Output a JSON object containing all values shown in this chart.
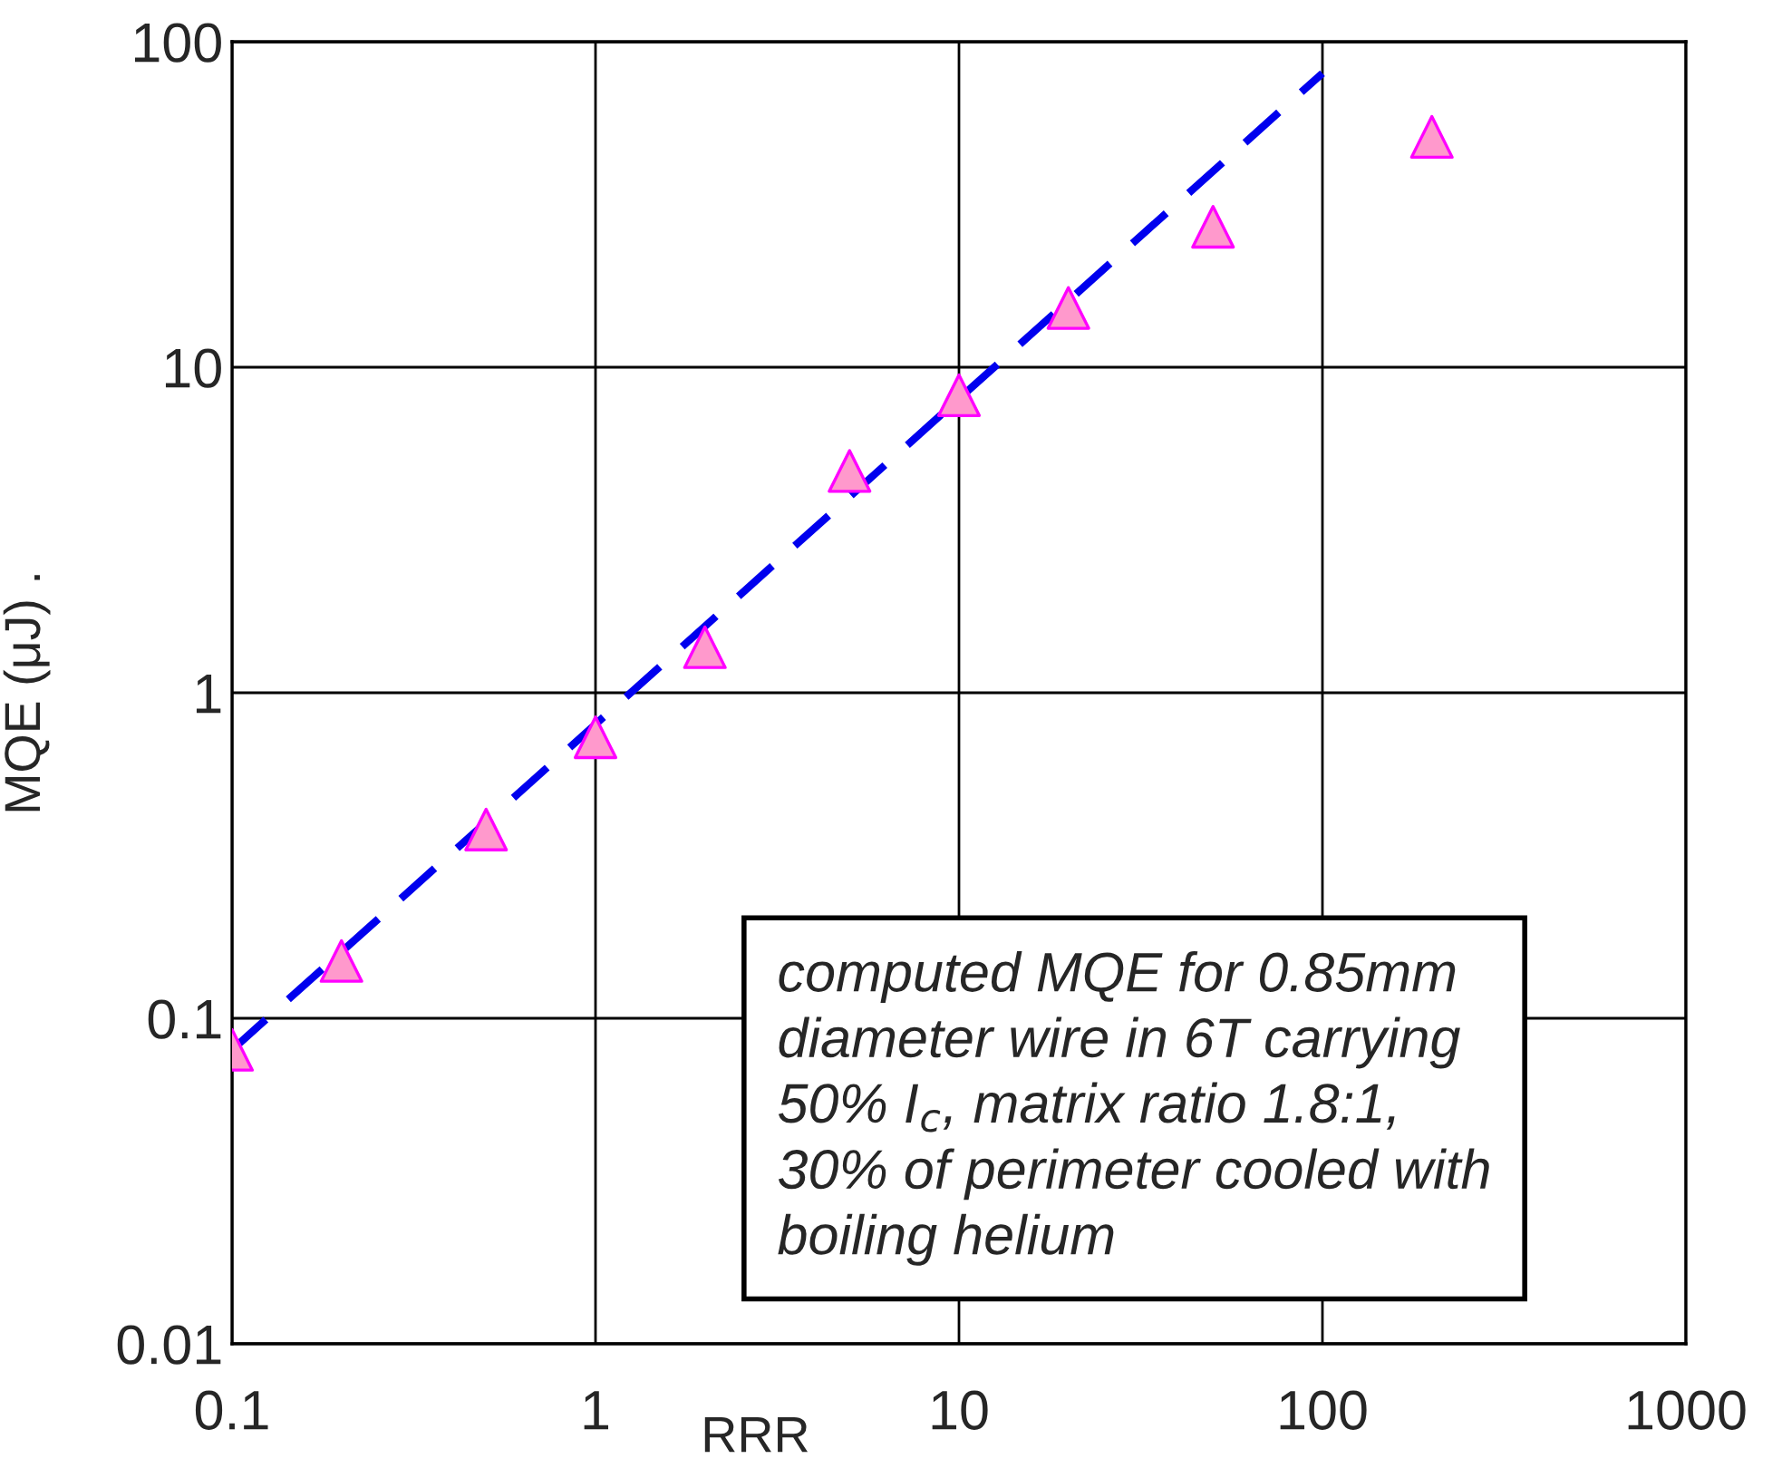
{
  "chart_data": {
    "type": "scatter",
    "xlabel": "RRR",
    "ylabel": "MQE (μJ) .",
    "log": "xy",
    "grid": true,
    "xlim": [
      0.1,
      1000
    ],
    "xticks": [
      0.1,
      1,
      10,
      100,
      1000
    ],
    "ylim": [
      0.01,
      100
    ],
    "yticks": [
      0.01,
      0.1,
      1,
      10,
      100
    ],
    "series": [
      {
        "marker": "triangle",
        "color": "#ff99cc",
        "x": [
          0.1,
          0.2,
          0.5,
          1,
          2,
          5,
          10,
          20,
          50,
          200
        ],
        "values": [
          0.08,
          0.15,
          0.38,
          0.73,
          1.38,
          4.8,
          8.2,
          15.2,
          27,
          51
        ]
      },
      {
        "type": "line",
        "line_style": "dashed",
        "marker": "none",
        "color": "#0000ee",
        "x": [
          0.1,
          100
        ],
        "values": [
          0.08,
          80
        ]
      }
    ],
    "annotations": [
      "computed MQE for 0.85mm\ndiameter wire in 6T carrying\n50% I$_{c}$, matrix ratio 1.8:1,\n30% of perimeter cooled with\nboiling helium"
    ]
  }
}
